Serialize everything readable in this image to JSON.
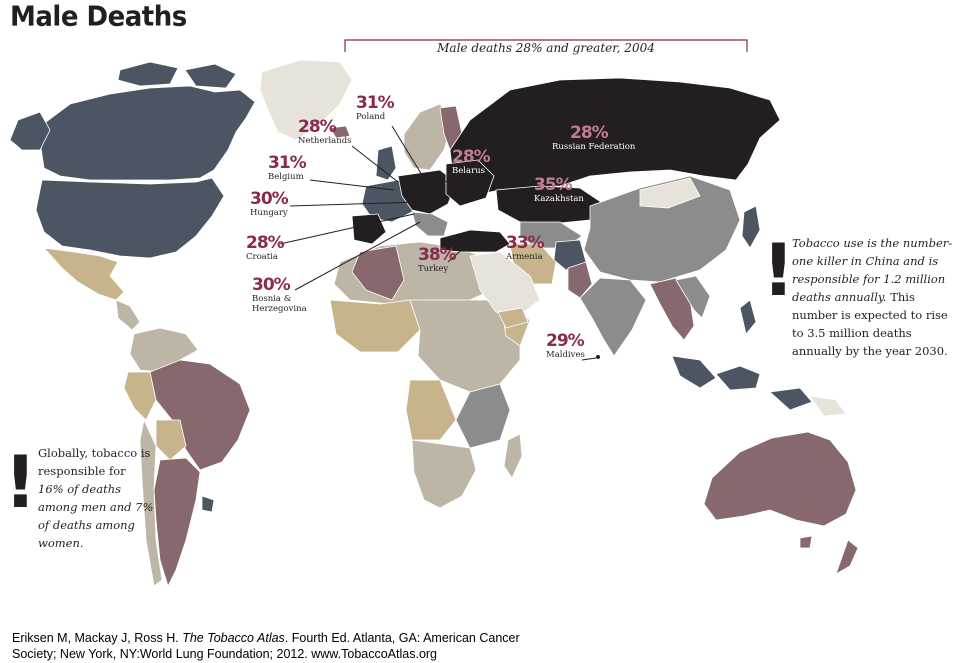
{
  "title": "Male Deaths",
  "bracket_label": "Male deaths 28% and greater, 2004",
  "callouts": [
    {
      "pct": "31%",
      "country": "Poland"
    },
    {
      "pct": "28%",
      "country": "Netherlands"
    },
    {
      "pct": "28%",
      "country": "Belarus"
    },
    {
      "pct": "28%",
      "country": "Russian Federation"
    },
    {
      "pct": "31%",
      "country": "Belgium"
    },
    {
      "pct": "35%",
      "country": "Kazakhstan"
    },
    {
      "pct": "30%",
      "country": "Hungary"
    },
    {
      "pct": "28%",
      "country": "Croatia"
    },
    {
      "pct": "38%",
      "country": "Turkey"
    },
    {
      "pct": "33%",
      "country": "Armenia"
    },
    {
      "pct": "30%",
      "country": "Bosnia & Herzegovina"
    },
    {
      "pct": "29%",
      "country": "Maldives"
    }
  ],
  "note_right": {
    "italic": "Tobacco use is the number-one killer in China and is responsible for 1.2 million deaths annually.",
    "plain": "This number is expected to rise to 3.5 million deaths annually by the year 2030."
  },
  "note_left": {
    "plain1": "Globally, tobacco is responsible for",
    "italic1": "16% of deaths among men and",
    "italic2": "7% of deaths among women."
  },
  "citation": {
    "part1": "Eriksen M, Mackay J, Ross H. ",
    "book": "The Tobacco Atlas",
    "part2": ". Fourth Ed. Atlanta, GA: American Cancer Society; New York, NY:World Lung Foundation; 2012. www.TobaccoAtlas.org"
  },
  "colors": {
    "darkest": "#231f20",
    "slate": "#4c5663",
    "plum": "#86686d",
    "grey": "#8c8c8c",
    "taupe": "#bdb5a6",
    "tan": "#c8b48c",
    "pale": "#e7e2da",
    "accent": "#8a2a4c"
  }
}
